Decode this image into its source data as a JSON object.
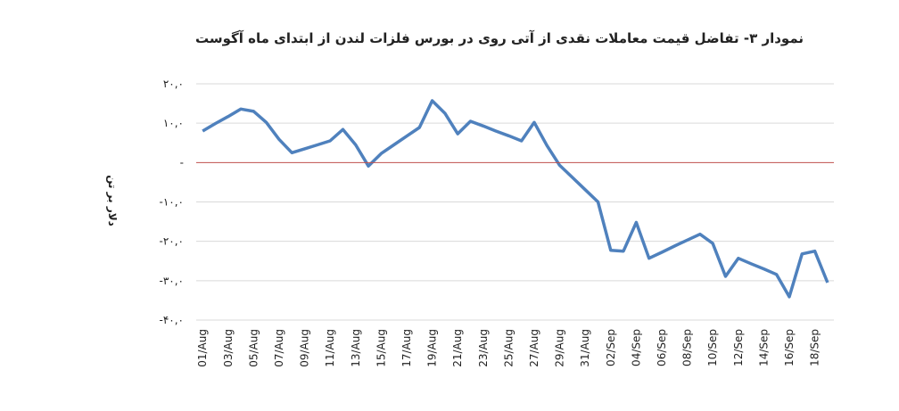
{
  "chart_data": {
    "type": "line",
    "title": "نمودار ۳- تفاضل قیمت معاملات نقدی از آتی روی در بورس فلزات لندن از ابتدای ماه آگوست",
    "y_label": "دلار بر تن",
    "categories": [
      "01/Aug",
      null,
      "03/Aug",
      null,
      "05/Aug",
      null,
      "07/Aug",
      null,
      "09/Aug",
      null,
      "11/Aug",
      null,
      "13/Aug",
      null,
      "15/Aug",
      null,
      "17/Aug",
      null,
      "19/Aug",
      null,
      "21/Aug",
      null,
      "23/Aug",
      null,
      "25/Aug",
      null,
      "27/Aug",
      null,
      "29/Aug",
      null,
      "31/Aug",
      null,
      "02/Sep",
      null,
      "04/Sep",
      null,
      "06/Sep",
      null,
      "08/Sep",
      null,
      "10/Sep",
      null,
      "12/Sep",
      null,
      "14/Sep",
      null,
      "16/Sep",
      null,
      "18/Sep",
      null
    ],
    "series": [
      {
        "color": "#4f81bd",
        "values": [
          8.0,
          9.9,
          11.7,
          13.6,
          13.0,
          10.2,
          5.9,
          2.5,
          3.5,
          4.5,
          5.5,
          8.4,
          4.5,
          -0.9,
          2.3,
          4.5,
          6.7,
          8.9,
          15.7,
          12.5,
          7.3,
          10.5,
          9.3,
          8.0,
          6.8,
          5.5,
          10.2,
          4.3,
          -0.7,
          -3.8,
          -6.9,
          -10.0,
          -22.3,
          -22.5,
          -15.2,
          -24.3,
          -22.8,
          -21.2,
          -19.7,
          -18.2,
          -20.5,
          -28.9,
          -24.3,
          -25.7,
          -27.0,
          -28.4,
          -34.1,
          -23.2,
          -22.5,
          -30.5
        ]
      }
    ],
    "ylim": [
      -40,
      20
    ],
    "yticks": [
      {
        "value": -40,
        "label": "-۴۰,۰"
      },
      {
        "value": -30,
        "label": "-۳۰,۰"
      },
      {
        "value": -20,
        "label": "-۲۰,۰"
      },
      {
        "value": -10,
        "label": "-۱۰,۰"
      },
      {
        "value": 0,
        "label": "-"
      },
      {
        "value": 10,
        "label": "۱۰,۰"
      },
      {
        "value": 20,
        "label": "۲۰,۰"
      }
    ],
    "grid": true,
    "grid_color": "#d9d9d9",
    "zero_line_color": "#c0504d"
  }
}
